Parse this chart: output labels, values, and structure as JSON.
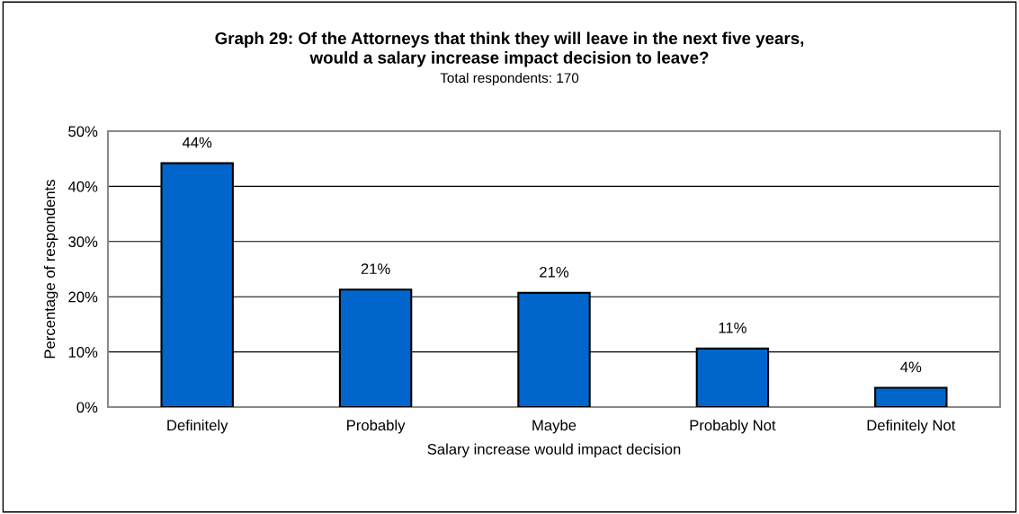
{
  "chart_data": {
    "type": "bar",
    "title": "Graph 29: Of the Attorneys that think they will leave in the next five years,\nwould a salary increase impact decision to leave?",
    "subtitle": "Total respondents: 170",
    "xlabel": "Salary increase would impact decision",
    "ylabel": "Percentage of respondents",
    "categories": [
      "Definitely",
      "Probably",
      "Maybe",
      "Probably Not",
      "Definitely Not"
    ],
    "values": [
      44.2,
      21.3,
      20.7,
      10.6,
      3.5
    ],
    "value_labels": [
      "44%",
      "21%",
      "21%",
      "11%",
      "4%"
    ],
    "color": "#0066cc",
    "ylim": [
      0,
      50
    ],
    "yticks": [
      {
        "value": 0,
        "label": "0%"
      },
      {
        "value": 10,
        "label": "10%"
      },
      {
        "value": 20,
        "label": "20%"
      },
      {
        "value": 30,
        "label": "30%"
      },
      {
        "value": 40,
        "label": "40%"
      },
      {
        "value": 50,
        "label": "50%"
      }
    ],
    "grid": "y",
    "legend": false
  }
}
